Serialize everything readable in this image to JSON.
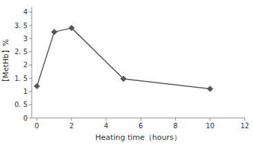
{
  "chart_data": {
    "type": "line",
    "x": [
      0,
      1,
      2,
      5,
      10
    ],
    "values": [
      1.2,
      3.25,
      3.4,
      1.48,
      1.1
    ],
    "xlim": [
      -0.3,
      12
    ],
    "ylim": [
      0,
      4.2
    ],
    "xticks": [
      0,
      2,
      4,
      6,
      8,
      10,
      12
    ],
    "yticks": [
      0,
      {
        "value": 0.5,
        "label": "0. 5"
      },
      1,
      {
        "value": 1.5,
        "label": "1. 5"
      },
      2,
      {
        "value": 2.5,
        "label": "2. 5"
      },
      3,
      {
        "value": 3.5,
        "label": "3. 5"
      },
      4
    ],
    "xlabel": "Heating time（hours）",
    "ylabel": "【MetHb】%",
    "color": "#555555",
    "marker": "diamond",
    "line_style": "solid",
    "grid": false
  }
}
